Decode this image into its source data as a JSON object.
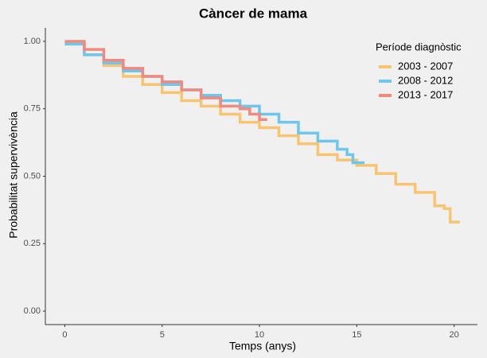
{
  "chart_data": {
    "type": "step",
    "title": "Càncer de mama",
    "xlabel": "Temps (anys)",
    "ylabel": "Probabilitat supervivència",
    "legend_title": "Període diagnòstic",
    "legend": "top-right",
    "xlim": [
      -1,
      21.2
    ],
    "ylim": [
      -0.05,
      1.05
    ],
    "xticks": [
      0,
      5,
      10,
      15,
      20
    ],
    "yticks": [
      {
        "value": 0,
        "label": "0.00"
      },
      {
        "value": 0.25,
        "label": "0.25"
      },
      {
        "value": 0.5,
        "label": "0.50"
      },
      {
        "value": 0.75,
        "label": "0.75"
      },
      {
        "value": 1,
        "label": "1.00"
      }
    ],
    "series": [
      {
        "name": "2003 - 2007",
        "color": "#f8c471",
        "x": [
          0,
          1,
          2,
          3,
          4,
          5,
          6,
          7,
          8,
          9,
          10,
          11,
          12,
          13,
          14,
          15,
          16,
          17,
          18,
          19,
          19.5,
          19.8,
          20.3
        ],
        "values": [
          0.99,
          0.95,
          0.91,
          0.87,
          0.84,
          0.81,
          0.78,
          0.76,
          0.73,
          0.7,
          0.68,
          0.65,
          0.62,
          0.58,
          0.56,
          0.54,
          0.51,
          0.47,
          0.44,
          0.39,
          0.38,
          0.33,
          0.33
        ]
      },
      {
        "name": "2008 - 2012",
        "color": "#6ec6ec",
        "x": [
          0,
          1,
          2,
          3,
          4,
          5,
          6,
          7,
          8,
          9,
          10,
          11,
          12,
          13,
          14,
          14.5,
          14.8,
          15.4
        ],
        "values": [
          0.99,
          0.95,
          0.92,
          0.89,
          0.87,
          0.84,
          0.82,
          0.8,
          0.78,
          0.76,
          0.73,
          0.7,
          0.66,
          0.63,
          0.6,
          0.58,
          0.55,
          0.55
        ]
      },
      {
        "name": "2013 - 2017",
        "color": "#f08a7e",
        "x": [
          0,
          1,
          2,
          3,
          4,
          5,
          6,
          7,
          8,
          9,
          9.5,
          10,
          10.4
        ],
        "values": [
          1,
          0.97,
          0.93,
          0.9,
          0.87,
          0.85,
          0.82,
          0.79,
          0.76,
          0.75,
          0.73,
          0.71,
          0.71
        ]
      }
    ]
  }
}
